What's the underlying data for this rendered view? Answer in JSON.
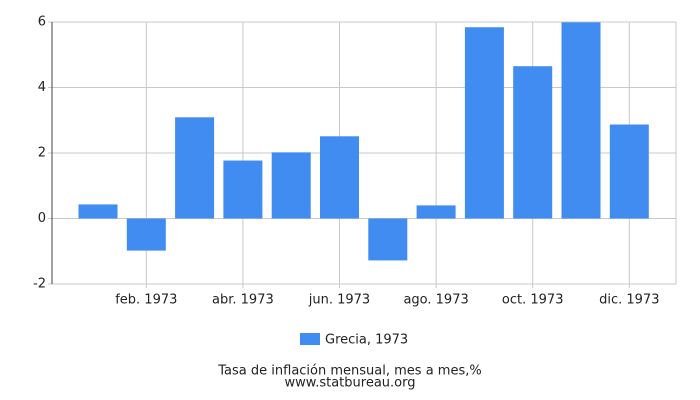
{
  "chart_data": {
    "type": "bar",
    "categories": [
      null,
      "feb. 1973",
      null,
      "abr. 1973",
      null,
      "jun. 1973",
      null,
      "ago. 1973",
      null,
      "oct. 1973",
      null,
      "dic. 1973"
    ],
    "series": [
      {
        "name": "Grecia, 1973",
        "color": "#418cf0",
        "values": [
          0.43,
          -0.98,
          3.09,
          1.77,
          2.02,
          2.51,
          -1.28,
          0.4,
          5.84,
          4.65,
          5.99,
          2.87
        ]
      }
    ],
    "ylim": [
      -2,
      6
    ],
    "yticks": [
      -2,
      0,
      2,
      4,
      6
    ],
    "grid": true,
    "footer": "Tasa de inflación mensual, mes a mes,%",
    "source": "www.statbureau.org"
  }
}
